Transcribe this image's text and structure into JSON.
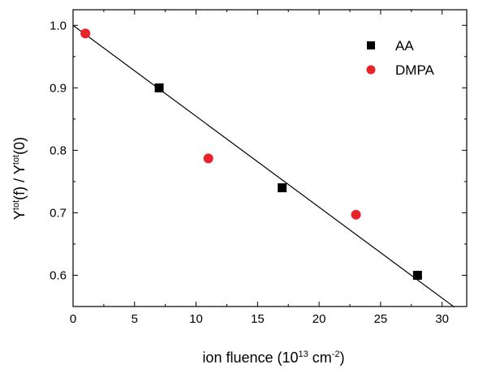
{
  "chart_data": {
    "type": "scatter",
    "xlabel": {
      "main": "ion fluence (10",
      "sup1": "13",
      "unit": " cm",
      "sup2": "-2",
      "close": ")"
    },
    "ylabel": {
      "part1": "Y",
      "sup1": "tot",
      "part2": "(f) / Y",
      "sup2": "tot",
      "part3": "(0)"
    },
    "xlim": [
      0,
      32
    ],
    "ylim": [
      0.55,
      1.025
    ],
    "xticks": [
      0,
      5,
      10,
      15,
      20,
      25,
      30
    ],
    "yticks": [
      0.6,
      0.7,
      0.8,
      0.9,
      1.0
    ],
    "xtick_labels": [
      "0",
      "5",
      "10",
      "15",
      "20",
      "25",
      "30"
    ],
    "ytick_labels": [
      "0.6",
      "0.7",
      "0.8",
      "0.9",
      "1.0"
    ],
    "grid": false,
    "legend_position": "top-right",
    "series": [
      {
        "name": "AA",
        "marker": "square",
        "color": "#000000",
        "points": [
          {
            "x": 7,
            "y": 0.9
          },
          {
            "x": 17,
            "y": 0.74
          },
          {
            "x": 28,
            "y": 0.6
          }
        ]
      },
      {
        "name": "DMPA",
        "marker": "circle",
        "color": "#e8232a",
        "points": [
          {
            "x": 1,
            "y": 0.987
          },
          {
            "x": 11,
            "y": 0.787
          },
          {
            "x": 23,
            "y": 0.697
          }
        ]
      }
    ],
    "fit_line": {
      "color": "#000000",
      "intercept": 1.0,
      "slope": -0.01455,
      "x_start": 0,
      "x_end": 31
    }
  }
}
